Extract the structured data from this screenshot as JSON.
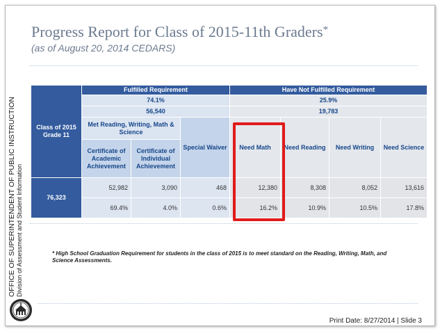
{
  "slide": {
    "title": "Progress Report for Class of 2015-11th Graders",
    "title_asterisk": "*",
    "subtitle": "(as of August 20, 2014 CEDARS)",
    "side_office": "OFFICE OF SUPERINTENDENT OF PUBLIC INSTRUCTION",
    "side_division": "Division of Assessment and Student Information",
    "footnote": "* High School Graduation Requirement for students in the class of 2015 is to meet standard on the Reading, Writing, Math, and Science Assessments.",
    "footer": "Print Date: 8/27/2014  |  Slide 3",
    "highlight_color": "#e01b1b"
  },
  "table": {
    "row_label_1": "Class of 2015",
    "row_label_2": "Grade 11",
    "fulfilled_header": "Fulfilled Requirement",
    "not_fulfilled_header": "Have Not Fulfilled Requirement",
    "fulfilled_pct": "74.1%",
    "fulfilled_count": "56,540",
    "not_fulfilled_pct": "25.9%",
    "not_fulfilled_count": "19,783",
    "met_rwms": "Met Reading, Writing, Math & Science",
    "columns": {
      "caa": "Certificate of Academic Achievement",
      "cia": "Certificate of Individual Achievement",
      "special_waiver": "Special Waiver",
      "need_math": "Need Math",
      "need_reading": "Need Reading",
      "need_writing": "Need Writing",
      "need_science": "Need Science"
    },
    "total": "76,323",
    "counts": {
      "caa": "52,982",
      "cia": "3,090",
      "special_waiver": "468",
      "need_math": "12,380",
      "need_reading": "8,308",
      "need_writing": "8,052",
      "need_science": "13,616"
    },
    "percents": {
      "caa": "69.4%",
      "cia": "4.0%",
      "special_waiver": "0.6%",
      "need_math": "16.2%",
      "need_reading": "10.9%",
      "need_writing": "10.5%",
      "need_science": "17.8%"
    }
  }
}
